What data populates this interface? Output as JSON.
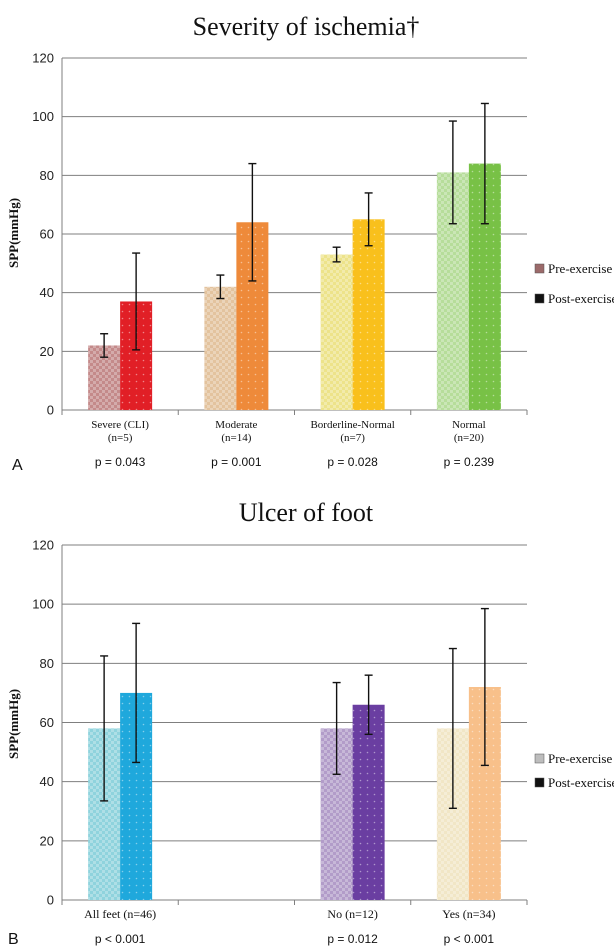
{
  "chart_data": [
    {
      "type": "bar",
      "panel": "A",
      "title": "Severity of ischemia†",
      "ylabel": "SPP(mmHg)",
      "ylim": [
        0,
        120
      ],
      "yticks": [
        0,
        20,
        40,
        60,
        80,
        100,
        120
      ],
      "grid": true,
      "legend_position": "right",
      "categories": [
        {
          "label": "Severe (CLI)",
          "n": "(n=5)",
          "p": "p = 0.043"
        },
        {
          "label": "Moderate",
          "n": "(n=14)",
          "p": "p = 0.001"
        },
        {
          "label": "Borderline-Normal",
          "n": "(n=7)",
          "p": "p = 0.028"
        },
        {
          "label": "Normal",
          "n": "(n=20)",
          "p": "p = 0.239"
        }
      ],
      "series": [
        {
          "name": "Pre-exercise",
          "values": [
            22,
            42,
            53,
            81
          ],
          "err": [
            4,
            4,
            2.5,
            17.5
          ]
        },
        {
          "name": "Post-exercise",
          "values": [
            37,
            64,
            65,
            84
          ],
          "err": [
            16.5,
            20,
            9,
            20.5
          ]
        }
      ],
      "colors": {
        "pre": [
          "#c48a8a",
          "#e3c39e",
          "#ede38a",
          "#b6dd9a"
        ],
        "post": [
          "#e11f26",
          "#ee8a3a",
          "#f9c01c",
          "#78c146"
        ],
        "legend_pre": "#9b6a6a",
        "legend_post": "#111111"
      }
    },
    {
      "type": "bar",
      "panel": "B",
      "title": "Ulcer of foot",
      "ylabel": "SPP(mmHg)",
      "ylim": [
        0,
        120
      ],
      "yticks": [
        0,
        20,
        40,
        60,
        80,
        100,
        120
      ],
      "grid": true,
      "legend_position": "right",
      "categories": [
        {
          "label": "All feet (n=46)",
          "p": "p < 0.001"
        },
        {
          "label": "",
          "p": ""
        },
        {
          "label": "No (n=12)",
          "p": "p = 0.012"
        },
        {
          "label": "Yes (n=34)",
          "p": "p < 0.001"
        }
      ],
      "series": [
        {
          "name": "Pre-exercise",
          "values": [
            58,
            null,
            58,
            58
          ],
          "err": [
            24.5,
            null,
            15.5,
            27
          ]
        },
        {
          "name": "Post-exercise",
          "values": [
            70,
            null,
            66,
            72
          ],
          "err": [
            23.5,
            null,
            10,
            26.5
          ]
        }
      ],
      "colors": {
        "pre": [
          "#8fd3dd",
          "#ffffff",
          "#b29cc9",
          "#f1e6c6"
        ],
        "post": [
          "#1fa8dc",
          "#ffffff",
          "#6a3ea1",
          "#f8c08a"
        ],
        "legend_pre": "#bdbdbd",
        "legend_post": "#111111"
      }
    }
  ]
}
